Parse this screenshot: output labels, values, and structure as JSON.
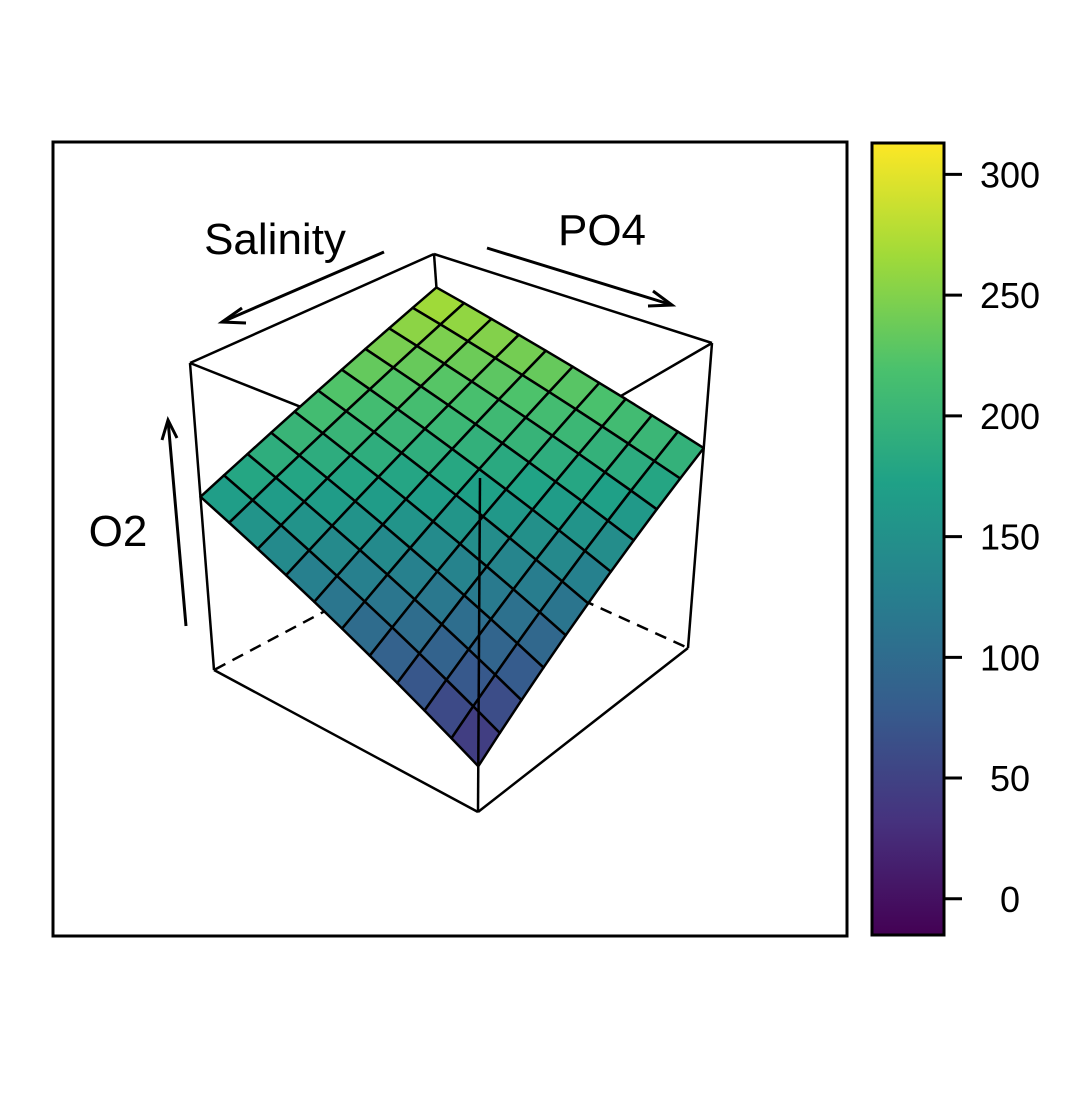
{
  "chart_data": {
    "type": "surface3d",
    "axis_labels": {
      "x": "Salinity",
      "y": "PO4",
      "z": "O2"
    },
    "grid_size": [
      10,
      10
    ],
    "surface_model": {
      "description_of_corners": "fitted O2 surface over Salinity x PO4 grid",
      "corner_values": {
        "low_salinity_low_po4": 170,
        "low_salinity_high_po4": 275,
        "high_salinity_low_po4": 30,
        "high_salinity_high_po4": 200
      }
    },
    "colorbar": {
      "palette": "viridis",
      "range": [
        -15,
        313
      ],
      "ticks": [
        0,
        50,
        100,
        150,
        200,
        250,
        300
      ],
      "tick_labels": [
        "0",
        "50",
        "100",
        "150",
        "200",
        "250",
        "300"
      ]
    },
    "colors": {
      "viridis_stops": [
        "#440154",
        "#46327e",
        "#365c8d",
        "#277f8e",
        "#1fa187",
        "#4ac16d",
        "#a0da39",
        "#fde725"
      ],
      "line": "#000000"
    }
  }
}
